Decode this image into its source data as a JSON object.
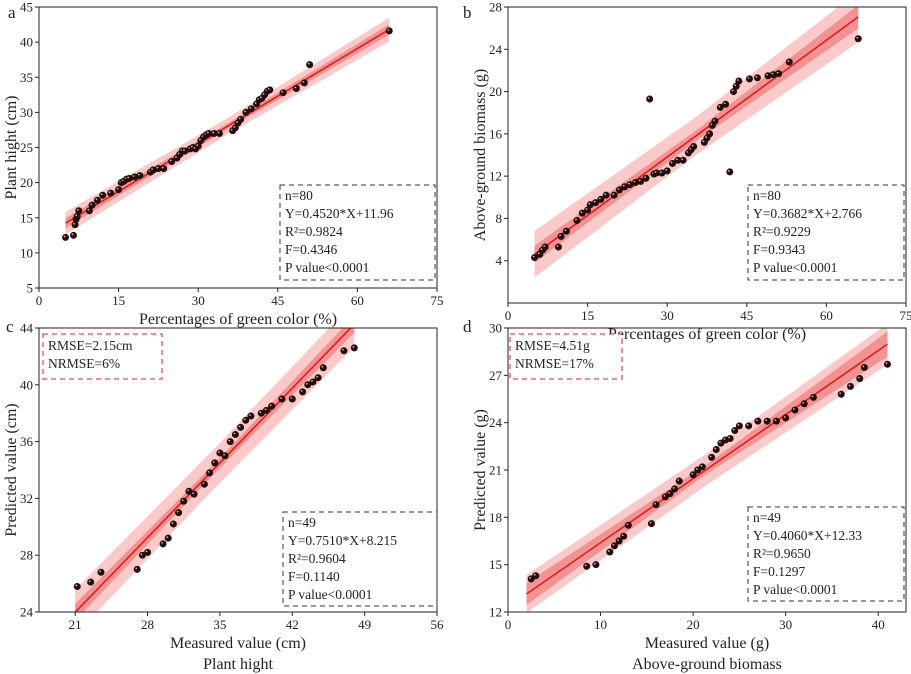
{
  "chart_data": [
    {
      "panel": "a",
      "type": "scatter",
      "xlabel": "Percentages of green color (%)",
      "ylabel": "Plant hight (cm)",
      "subtitle": "",
      "xlim": [
        0,
        75
      ],
      "ylim": [
        5,
        45
      ],
      "xticks": [
        "0",
        "15",
        "30",
        "45",
        "60",
        "75"
      ],
      "yticks": [
        "5",
        "10",
        "15",
        "20",
        "25",
        "30",
        "35",
        "40",
        "45"
      ],
      "xtick_values": [
        0,
        15,
        30,
        45,
        60,
        75
      ],
      "ytick_values": [
        5,
        10,
        15,
        20,
        25,
        30,
        35,
        40,
        45
      ],
      "stats": [
        "n=80",
        "Y=0.4520*X+11.96",
        "R²=0.9824",
        "F=0.4346",
        "P value<0.0001"
      ],
      "stats_box": "bottom-right",
      "fit": {
        "slope": 0.452,
        "intercept": 11.96
      },
      "band_ci": [
        0.7,
        0.4,
        0.75
      ],
      "band_pi": [
        1.6,
        1.15,
        1.7
      ],
      "x_range": [
        5,
        66
      ],
      "x": [
        5,
        6.5,
        6.8,
        7,
        7.2,
        7.5,
        9.5,
        10,
        11,
        12,
        13.5,
        15,
        15.5,
        16,
        16.5,
        17,
        18,
        19,
        21,
        21.5,
        22.5,
        23.5,
        25,
        26,
        26.5,
        27,
        27.5,
        28.5,
        29,
        29.5,
        30,
        30.5,
        31,
        31.5,
        32,
        33,
        34,
        36.5,
        37,
        37.5,
        38,
        39,
        40,
        41,
        41.5,
        42,
        42.5,
        43,
        43.5,
        46,
        48.5,
        50,
        51,
        66
      ],
      "y": [
        12.2,
        12.5,
        14,
        14.8,
        15.2,
        16,
        16,
        16.8,
        17.5,
        18.2,
        18.5,
        19,
        20,
        20.2,
        20.5,
        20.6,
        20.8,
        21,
        21.5,
        21.8,
        22,
        22,
        23,
        23.5,
        24,
        24.5,
        24.5,
        24.8,
        25,
        24.8,
        25.2,
        26,
        26.5,
        26.8,
        27,
        27,
        27,
        27.4,
        27.8,
        28.5,
        29,
        30,
        30.5,
        31.2,
        31.8,
        32,
        32.5,
        33,
        33.2,
        32.8,
        33.4,
        34.2,
        36.8,
        41.6
      ]
    },
    {
      "panel": "b",
      "type": "scatter",
      "xlabel": "Percentages of green color (%)",
      "ylabel": "Above-ground biomass (g)",
      "subtitle": "",
      "xlim": [
        0,
        75
      ],
      "ylim": [
        0,
        28
      ],
      "xticks": [
        "0",
        "15",
        "30",
        "45",
        "60",
        "75"
      ],
      "yticks": [
        "4",
        "8",
        "12",
        "16",
        "20",
        "24",
        "28"
      ],
      "xtick_values": [
        0,
        15,
        30,
        45,
        60,
        75
      ],
      "ytick_values": [
        4,
        8,
        12,
        16,
        20,
        24,
        28
      ],
      "stats": [
        "n=80",
        "Y=0.3682*X+2.766",
        "R²=0.9229",
        "F=0.9343",
        "P value<0.0001"
      ],
      "stats_box": "bottom-right",
      "fit": {
        "slope": 0.3682,
        "intercept": 2.766
      },
      "band_ci": [
        0.8,
        0.5,
        1.1
      ],
      "band_pi": [
        2.2,
        1.8,
        2.4
      ],
      "x_range": [
        5,
        66
      ],
      "x": [
        5,
        6,
        6.5,
        7,
        9.5,
        10,
        11,
        13,
        14,
        15,
        15.5,
        16.5,
        17.5,
        18.5,
        20,
        21,
        22,
        23,
        24,
        25,
        26,
        26.7,
        27.5,
        28,
        29,
        30,
        31,
        32,
        33,
        34,
        34.5,
        35,
        37,
        37.5,
        38,
        38.5,
        39,
        40,
        41,
        41.8,
        42.5,
        43,
        43.5,
        45.5,
        47,
        49,
        50,
        51,
        53,
        66
      ],
      "y": [
        4.3,
        4.6,
        5,
        5.3,
        5.3,
        6.3,
        6.8,
        7.8,
        8.5,
        8.8,
        9.3,
        9.5,
        9.8,
        10.2,
        10.2,
        10.7,
        11,
        11.2,
        11.4,
        11.5,
        11.8,
        19.3,
        12.2,
        12.3,
        12.3,
        12.5,
        13.2,
        13.5,
        13.5,
        14.2,
        14.5,
        14.8,
        15.2,
        15.6,
        16,
        16.8,
        17.2,
        18.5,
        18.8,
        12.4,
        20,
        20.5,
        21,
        21.2,
        21.3,
        21.5,
        21.6,
        21.7,
        22.8,
        25
      ]
    },
    {
      "panel": "c",
      "type": "scatter",
      "xlabel": "Measured value (cm)",
      "ylabel": "Predicted value (cm)",
      "subtitle": "Plant hight",
      "xlim": [
        17.5,
        56
      ],
      "ylim": [
        24,
        44
      ],
      "xticks": [
        "21",
        "28",
        "35",
        "42",
        "49",
        "56"
      ],
      "yticks": [
        "24",
        "28",
        "32",
        "36",
        "40",
        "44"
      ],
      "xtick_values": [
        21,
        28,
        35,
        42,
        49,
        56
      ],
      "ytick_values": [
        24,
        28,
        32,
        36,
        40,
        44
      ],
      "metrics": [
        "RMSE=2.15cm",
        "NRMSE=6%"
      ],
      "stats": [
        "n=49",
        "Y=0.7510*X+8.215",
        "R²=0.9604",
        "F=0.1140",
        "P value<0.0001"
      ],
      "stats_box": "bottom-right",
      "fit": {
        "slope": 0.751,
        "intercept": 8.215
      },
      "band_ci": [
        0.6,
        0.35,
        0.6
      ],
      "band_pi": [
        1.6,
        1.4,
        1.6
      ],
      "x_range": [
        21,
        48
      ],
      "x": [
        21.2,
        22.5,
        23.5,
        27,
        27.5,
        28,
        29.5,
        30,
        30.5,
        31,
        31.5,
        32,
        32.5,
        33.5,
        34,
        34.5,
        35,
        35.5,
        36,
        36.5,
        37,
        37.5,
        38,
        39,
        39.5,
        40,
        41,
        42,
        43,
        43.5,
        44,
        44.5,
        45,
        47,
        48
      ],
      "y": [
        25.8,
        26.1,
        26.8,
        27,
        28,
        28.2,
        28.8,
        29.2,
        30.2,
        31,
        31.8,
        32.5,
        32.3,
        33,
        33.8,
        34.5,
        35.2,
        35,
        36,
        36.5,
        37,
        37.5,
        37.8,
        38,
        38.2,
        38.5,
        39,
        39,
        39.5,
        40,
        40.2,
        40.5,
        41.2,
        42.4,
        42.6
      ]
    },
    {
      "panel": "d",
      "type": "scatter",
      "xlabel": "Measured value (g)",
      "ylabel": "Predicted value (g)",
      "subtitle": "Above-ground biomass",
      "xlim": [
        0,
        43
      ],
      "ylim": [
        12,
        30
      ],
      "xticks": [
        "0",
        "10",
        "20",
        "30",
        "40"
      ],
      "yticks": [
        "12",
        "15",
        "18",
        "21",
        "24",
        "27",
        "30"
      ],
      "xtick_values": [
        0,
        10,
        20,
        30,
        40
      ],
      "ytick_values": [
        12,
        15,
        18,
        21,
        24,
        27,
        30
      ],
      "metrics": [
        "RMSE=4.51g",
        "NRMSE=17%"
      ],
      "stats": [
        "n=49",
        "Y=0.4060*X+12.33",
        "R²=0.9650",
        "F=0.1297",
        "P value<0.0001"
      ],
      "stats_box": "bottom-right",
      "fit": {
        "slope": 0.406,
        "intercept": 12.33
      },
      "band_ci": [
        0.7,
        0.3,
        0.8
      ],
      "band_pi": [
        1.2,
        1.0,
        1.3
      ],
      "x_range": [
        2,
        41
      ],
      "x": [
        2.5,
        3,
        8.5,
        9.5,
        11,
        11.5,
        12,
        12.5,
        13,
        15.5,
        16,
        17,
        17.5,
        18,
        18.5,
        20,
        20.5,
        21,
        22,
        22.5,
        23,
        23.5,
        24,
        24.5,
        25,
        26,
        27,
        28,
        29,
        30,
        31,
        32,
        33,
        36,
        37,
        38,
        38.5,
        41
      ],
      "y": [
        14.1,
        14.3,
        14.9,
        15,
        15.8,
        16.2,
        16.5,
        16.8,
        17.5,
        17.6,
        18.8,
        19.3,
        19.5,
        19.8,
        20.3,
        20.7,
        21,
        21.2,
        21.8,
        22.3,
        22.7,
        22.9,
        23,
        23.5,
        23.8,
        23.8,
        24.1,
        24.1,
        24.1,
        24.3,
        24.8,
        25.2,
        25.6,
        25.8,
        26.3,
        26.8,
        27.5,
        27.7
      ]
    }
  ]
}
